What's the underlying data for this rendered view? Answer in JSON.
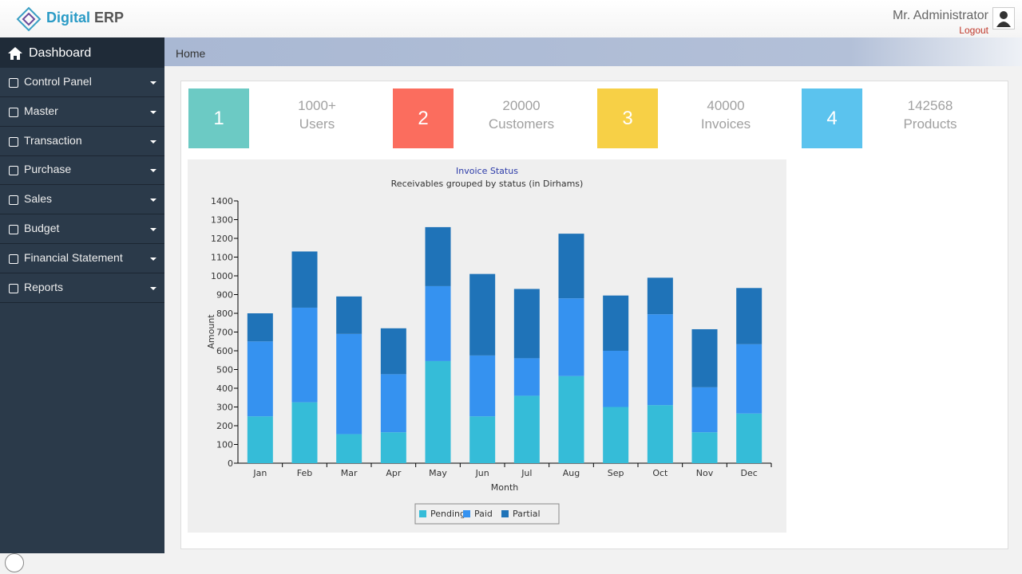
{
  "header": {
    "brand_first": "Digital",
    "brand_second": "ERP",
    "user": "Mr. Administrator",
    "logout": "Logout"
  },
  "sidebar": {
    "title": "Dashboard",
    "items": [
      "Control Panel",
      "Master",
      "Transaction",
      "Purchase",
      "Sales",
      "Budget",
      "Financial Statement",
      "Reports"
    ]
  },
  "breadcrumb": "Home",
  "stats": [
    {
      "number": 1,
      "value": "1000+",
      "label": "Users",
      "color": "#6ccac4"
    },
    {
      "number": 2,
      "value": 20000,
      "label": "Customers",
      "color": "#fb6d5e"
    },
    {
      "number": 3,
      "value": 40000,
      "label": "Invoices",
      "color": "#f7d046"
    },
    {
      "number": 4,
      "value": 142568,
      "label": "Products",
      "color": "#5bc3ee"
    }
  ],
  "chart_data": {
    "type": "stacked-bar",
    "title": "Invoice Status",
    "subtitle": "Receivables grouped by status (in Dirhams)",
    "x_label": "Month",
    "y_label": "Amount",
    "categories": [
      "Jan",
      "Feb",
      "Mar",
      "Apr",
      "May",
      "Jun",
      "Jul",
      "Aug",
      "Sep",
      "Oct",
      "Nov",
      "Dec"
    ],
    "series": [
      {
        "name": "Pending",
        "color": "#35bcd8",
        "values": [
          250,
          325,
          155,
          165,
          545,
          250,
          360,
          465,
          300,
          310,
          165,
          265
        ]
      },
      {
        "name": "Paid",
        "color": "#3592f0",
        "values": [
          400,
          505,
          535,
          310,
          400,
          325,
          200,
          415,
          300,
          485,
          240,
          370
        ]
      },
      {
        "name": "Partial",
        "color": "#1f73b8",
        "values": [
          150,
          300,
          200,
          245,
          315,
          435,
          370,
          345,
          295,
          195,
          310,
          300
        ]
      }
    ],
    "ylim": [
      0,
      1400
    ],
    "yticks": [
      0,
      100,
      200,
      300,
      400,
      500,
      600,
      700,
      800,
      900,
      1000,
      1100,
      1200,
      1300,
      1400
    ],
    "grid": false,
    "legend": "bottom"
  }
}
